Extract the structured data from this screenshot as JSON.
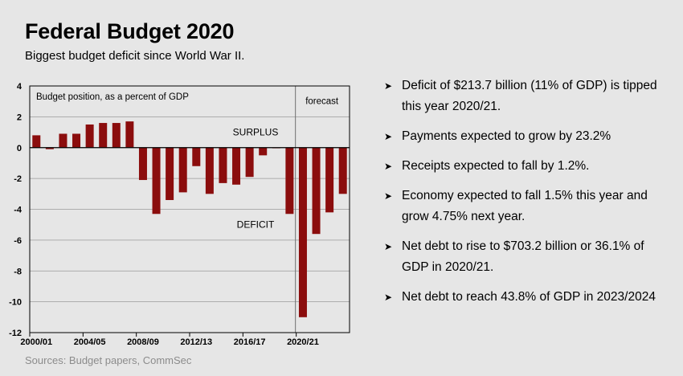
{
  "header": {
    "title": "Federal Budget 2020",
    "subtitle": "Biggest budget deficit since World War II."
  },
  "source": "Sources: Budget papers, CommSec",
  "bullets": [
    "Deficit of $213.7 billion (11% of GDP) is tipped this year 2020/21.",
    "Payments expected to grow by 23.2%",
    "Receipts expected to fall by 1.2%.",
    "Economy expected to fall 1.5% this year and grow 4.75% next year.",
    "Net debt to rise to $703.2 billion or 36.1% of GDP in 2020/21.",
    "Net debt to reach 43.8% of GDP in 2023/2024"
  ],
  "chart_data": {
    "type": "bar",
    "title": "Budget position, as a percent of GDP",
    "categories": [
      "2000/01",
      "2001/02",
      "2002/03",
      "2003/04",
      "2004/05",
      "2005/06",
      "2006/07",
      "2007/08",
      "2008/09",
      "2009/10",
      "2010/11",
      "2011/12",
      "2012/13",
      "2013/14",
      "2014/15",
      "2015/16",
      "2016/17",
      "2017/18",
      "2018/19",
      "2019/20",
      "2020/21",
      "2021/22",
      "2022/23",
      "2023/24"
    ],
    "tick_labels": [
      "2000/01",
      "2004/05",
      "2008/09",
      "2012/13",
      "2016/17",
      "2020/21"
    ],
    "values": [
      0.8,
      -0.1,
      0.9,
      0.9,
      1.5,
      1.6,
      1.6,
      1.7,
      -2.1,
      -4.3,
      -3.4,
      -2.9,
      -1.2,
      -3.0,
      -2.3,
      -2.4,
      -1.9,
      -0.5,
      0.0,
      -4.3,
      -11.0,
      -5.6,
      -4.2,
      -3.0
    ],
    "ylim": [
      -12,
      4
    ],
    "yticks": [
      4,
      2,
      0,
      -2,
      -4,
      -6,
      -8,
      -10,
      -12
    ],
    "grid": true,
    "bar_color": "#8b0d0d",
    "annotations": {
      "surplus": "SURPLUS",
      "deficit": "DEFICIT",
      "forecast": "forecast"
    },
    "forecast_start": "2020/21"
  }
}
